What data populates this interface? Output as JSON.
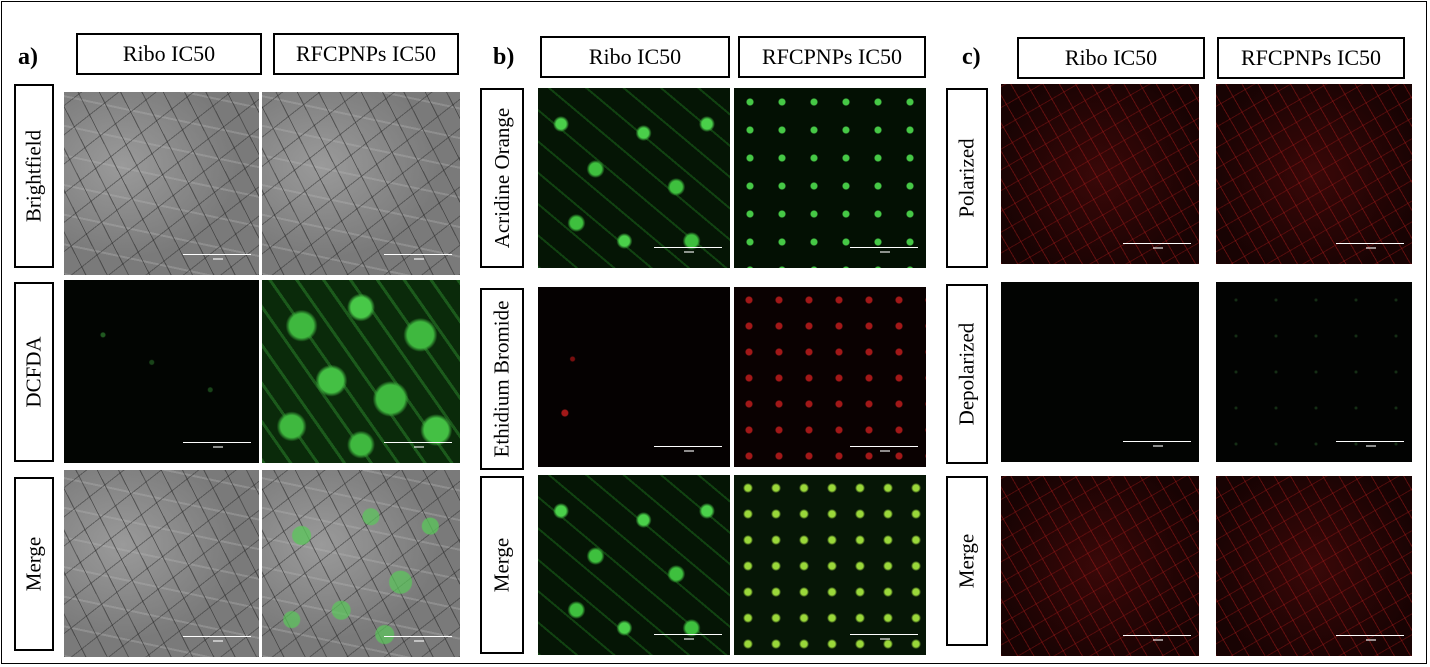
{
  "panels": [
    {
      "letter": "a)",
      "columns": [
        "Ribo IC50",
        "RFCPNPs IC50"
      ],
      "rows": [
        "Brightfield",
        "DCFDA",
        "Merge"
      ]
    },
    {
      "letter": "b)",
      "columns": [
        "Ribo IC50",
        "RFCPNPs IC50"
      ],
      "rows": [
        "Acridine Orange",
        "Ethidium Bromide",
        "Merge"
      ]
    },
    {
      "letter": "c)",
      "columns": [
        "Ribo IC50",
        "RFCPNPs IC50"
      ],
      "rows": [
        "Polarized",
        "Depolarized",
        "Merge"
      ]
    }
  ],
  "colors": {
    "brightfield": "#7e7e7e",
    "green_fluorescence": "#3fb83f",
    "red_fluorescence": "#c81e1e",
    "mitochondrial_red": "#a01919"
  }
}
